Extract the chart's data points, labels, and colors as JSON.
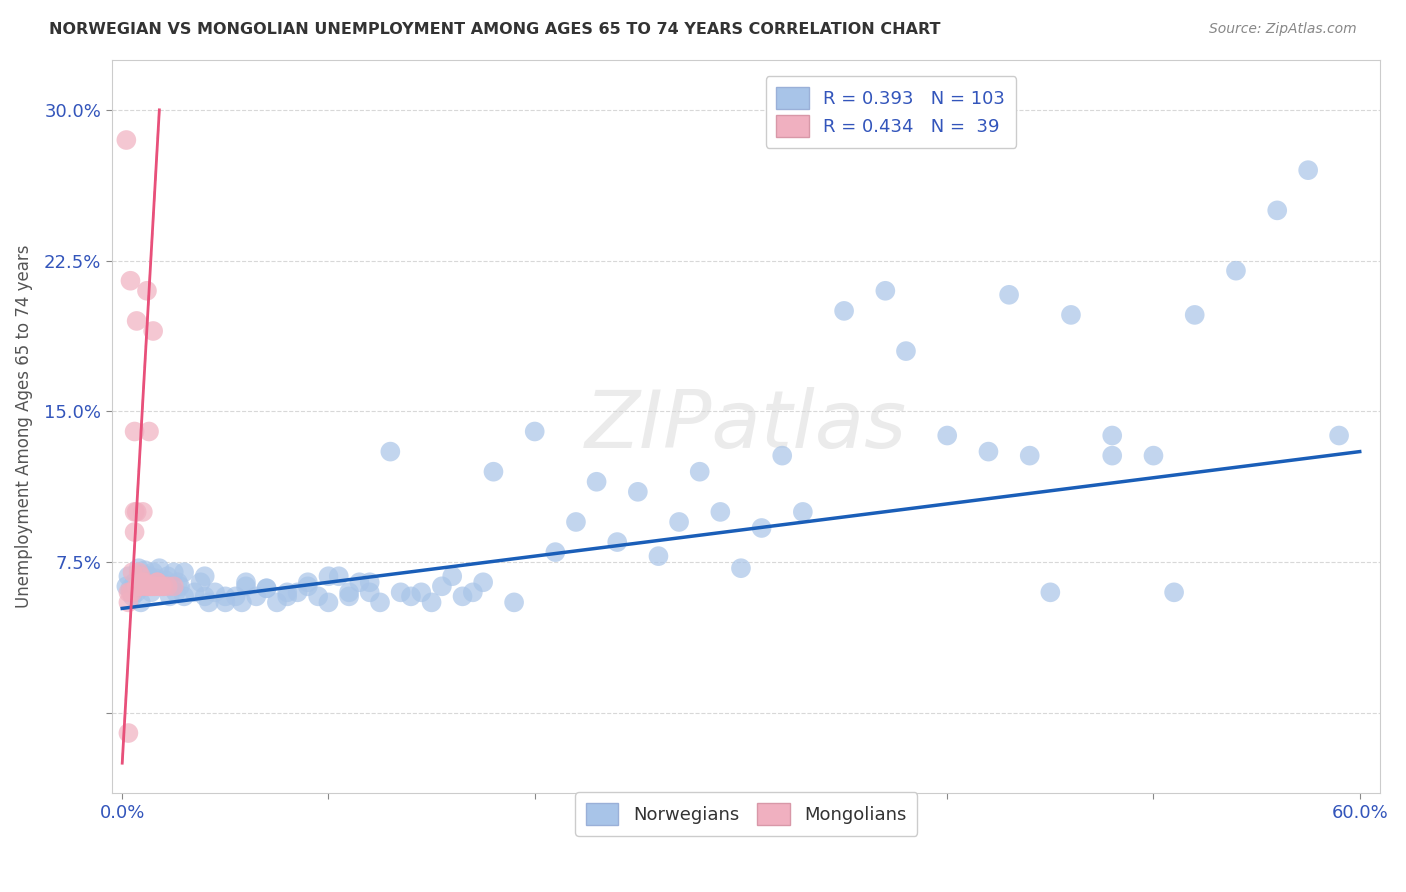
{
  "title": "NORWEGIAN VS MONGOLIAN UNEMPLOYMENT AMONG AGES 65 TO 74 YEARS CORRELATION CHART",
  "source": "Source: ZipAtlas.com",
  "ylabel": "Unemployment Among Ages 65 to 74 years",
  "xlim": [
    -0.005,
    0.61
  ],
  "ylim": [
    -0.04,
    0.325
  ],
  "xticks": [
    0.0,
    0.1,
    0.2,
    0.3,
    0.4,
    0.5,
    0.6
  ],
  "xticklabels": [
    "0.0%",
    "",
    "",
    "",
    "",
    "",
    "60.0%"
  ],
  "yticks": [
    0.0,
    0.075,
    0.15,
    0.225,
    0.3
  ],
  "yticklabels": [
    "",
    "7.5%",
    "15.0%",
    "22.5%",
    "30.0%"
  ],
  "watermark": "ZIPatlas",
  "norwegian_color": "#a8c4e8",
  "mongolian_color": "#f0b0c0",
  "trend_norwegian_color": "#1a5eb8",
  "trend_mongolian_color": "#e8507a",
  "nor_x": [
    0.002,
    0.003,
    0.004,
    0.005,
    0.006,
    0.007,
    0.008,
    0.009,
    0.01,
    0.011,
    0.012,
    0.013,
    0.014,
    0.015,
    0.016,
    0.017,
    0.018,
    0.019,
    0.02,
    0.021,
    0.022,
    0.023,
    0.024,
    0.025,
    0.026,
    0.027,
    0.028,
    0.03,
    0.035,
    0.038,
    0.04,
    0.042,
    0.045,
    0.05,
    0.055,
    0.058,
    0.06,
    0.065,
    0.07,
    0.075,
    0.08,
    0.085,
    0.09,
    0.095,
    0.1,
    0.105,
    0.11,
    0.115,
    0.12,
    0.125,
    0.13,
    0.135,
    0.14,
    0.145,
    0.15,
    0.155,
    0.16,
    0.165,
    0.17,
    0.175,
    0.18,
    0.19,
    0.2,
    0.21,
    0.22,
    0.23,
    0.24,
    0.25,
    0.26,
    0.27,
    0.28,
    0.29,
    0.3,
    0.31,
    0.32,
    0.33,
    0.35,
    0.37,
    0.38,
    0.4,
    0.42,
    0.43,
    0.44,
    0.46,
    0.48,
    0.5,
    0.52,
    0.54,
    0.56,
    0.575,
    0.59,
    0.03,
    0.04,
    0.05,
    0.06,
    0.07,
    0.08,
    0.09,
    0.1,
    0.11,
    0.12,
    0.45,
    0.48,
    0.51
  ],
  "nor_y": [
    0.063,
    0.068,
    0.062,
    0.058,
    0.065,
    0.06,
    0.072,
    0.055,
    0.069,
    0.071,
    0.065,
    0.068,
    0.06,
    0.07,
    0.067,
    0.064,
    0.072,
    0.065,
    0.063,
    0.066,
    0.068,
    0.058,
    0.063,
    0.07,
    0.06,
    0.065,
    0.063,
    0.058,
    0.06,
    0.065,
    0.058,
    0.055,
    0.06,
    0.055,
    0.058,
    0.055,
    0.063,
    0.058,
    0.062,
    0.055,
    0.058,
    0.06,
    0.063,
    0.058,
    0.055,
    0.068,
    0.058,
    0.065,
    0.06,
    0.055,
    0.13,
    0.06,
    0.058,
    0.06,
    0.055,
    0.063,
    0.068,
    0.058,
    0.06,
    0.065,
    0.12,
    0.055,
    0.14,
    0.08,
    0.095,
    0.115,
    0.085,
    0.11,
    0.078,
    0.095,
    0.12,
    0.1,
    0.072,
    0.092,
    0.128,
    0.1,
    0.2,
    0.21,
    0.18,
    0.138,
    0.13,
    0.208,
    0.128,
    0.198,
    0.128,
    0.128,
    0.198,
    0.22,
    0.25,
    0.27,
    0.138,
    0.07,
    0.068,
    0.058,
    0.065,
    0.062,
    0.06,
    0.065,
    0.068,
    0.06,
    0.065,
    0.06,
    0.138,
    0.06
  ],
  "mon_x": [
    0.002,
    0.004,
    0.006,
    0.006,
    0.007,
    0.007,
    0.008,
    0.008,
    0.009,
    0.01,
    0.01,
    0.011,
    0.012,
    0.013,
    0.014,
    0.015,
    0.016,
    0.017,
    0.018,
    0.003,
    0.003,
    0.004,
    0.005,
    0.005,
    0.006,
    0.007,
    0.008,
    0.009,
    0.01,
    0.011,
    0.012,
    0.013,
    0.015,
    0.017,
    0.019,
    0.02,
    0.022,
    0.025,
    0.003
  ],
  "mon_y": [
    0.285,
    0.215,
    0.14,
    0.09,
    0.195,
    0.1,
    0.063,
    0.07,
    0.068,
    0.1,
    0.065,
    0.065,
    0.21,
    0.14,
    0.063,
    0.19,
    0.063,
    0.065,
    0.063,
    0.06,
    0.055,
    0.06,
    0.07,
    0.06,
    0.1,
    0.063,
    0.063,
    0.063,
    0.065,
    0.063,
    0.063,
    0.063,
    0.063,
    0.065,
    0.063,
    0.063,
    0.063,
    0.063,
    -0.01
  ],
  "trend_nor_x0": 0.0,
  "trend_nor_y0": 0.052,
  "trend_nor_x1": 0.6,
  "trend_nor_y1": 0.13,
  "trend_mon_x0": 0.0,
  "trend_mon_y0": -0.025,
  "trend_mon_x1": 0.018,
  "trend_mon_y1": 0.3,
  "trend_mon_dash_x0": 0.018,
  "trend_mon_dash_y0": 0.3,
  "trend_mon_dash_x1": 0.0,
  "trend_mon_dash_y1": -0.025,
  "background_color": "#ffffff",
  "grid_color": "#d8d8d8"
}
